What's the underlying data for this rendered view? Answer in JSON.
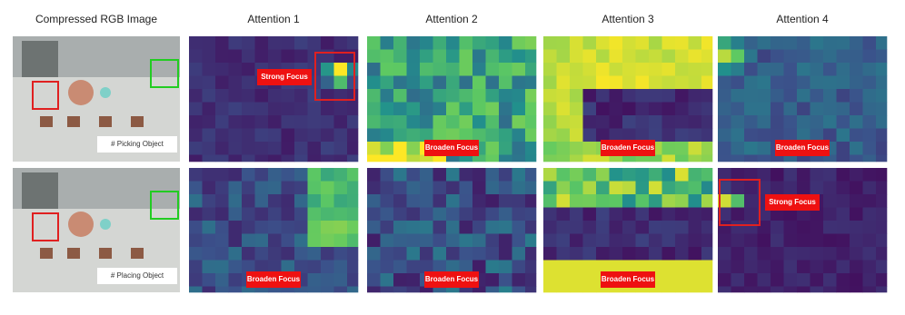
{
  "columns": [
    "Compressed RGB Image",
    "Attention 1",
    "Attention 2",
    "Attention 3",
    "Attention 4"
  ],
  "rows": [
    {
      "label": "# Picking Object",
      "annotations": [
        "Strong Focus",
        "Broaden Focus",
        "Broaden Focus",
        "Broaden Focus"
      ]
    },
    {
      "label": "# Placing Object",
      "annotations": [
        "Broaden Focus",
        "Broaden Focus",
        "Broaden Focus",
        "Strong Focus"
      ]
    }
  ]
}
